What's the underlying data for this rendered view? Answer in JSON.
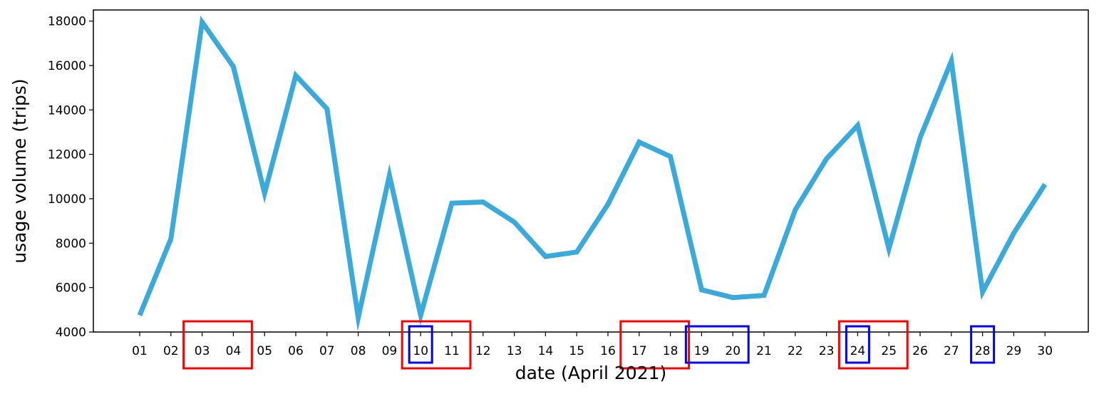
{
  "chart_data": {
    "type": "line",
    "xlabel": "date (April 2021)",
    "ylabel": "usage volume (trips)",
    "ylim": [
      4000,
      18500
    ],
    "yticks": [
      4000,
      6000,
      8000,
      10000,
      12000,
      14000,
      16000,
      18000
    ],
    "grid": false,
    "categories": [
      "01",
      "02",
      "03",
      "04",
      "05",
      "06",
      "07",
      "08",
      "09",
      "10",
      "11",
      "12",
      "13",
      "14",
      "15",
      "16",
      "17",
      "18",
      "19",
      "20",
      "21",
      "22",
      "23",
      "24",
      "25",
      "26",
      "27",
      "28",
      "29",
      "30"
    ],
    "series": [
      {
        "color": "#3aaadc",
        "values": [
          4750,
          8200,
          17950,
          15950,
          10250,
          15550,
          14050,
          4650,
          11050,
          4750,
          9800,
          9850,
          8950,
          7400,
          7600,
          9750,
          12550,
          11900,
          5900,
          5550,
          5650,
          9500,
          11800,
          13300,
          7750,
          12750,
          16200,
          5800,
          8450,
          10650
        ]
      }
    ],
    "highlights": [
      {
        "color": "#ff0000",
        "labels": [
          "03",
          "04"
        ]
      },
      {
        "color": "#ff0000",
        "labels": [
          "10",
          "11"
        ]
      },
      {
        "color": "#ff0000",
        "labels": [
          "17",
          "18"
        ]
      },
      {
        "color": "#ff0000",
        "labels": [
          "24",
          "25"
        ]
      },
      {
        "color": "#0000ff",
        "labels": [
          "10"
        ]
      },
      {
        "color": "#0000ff",
        "labels": [
          "19",
          "20"
        ]
      },
      {
        "color": "#0000ff",
        "labels": [
          "24"
        ]
      },
      {
        "color": "#0000ff",
        "labels": [
          "28"
        ]
      }
    ]
  }
}
